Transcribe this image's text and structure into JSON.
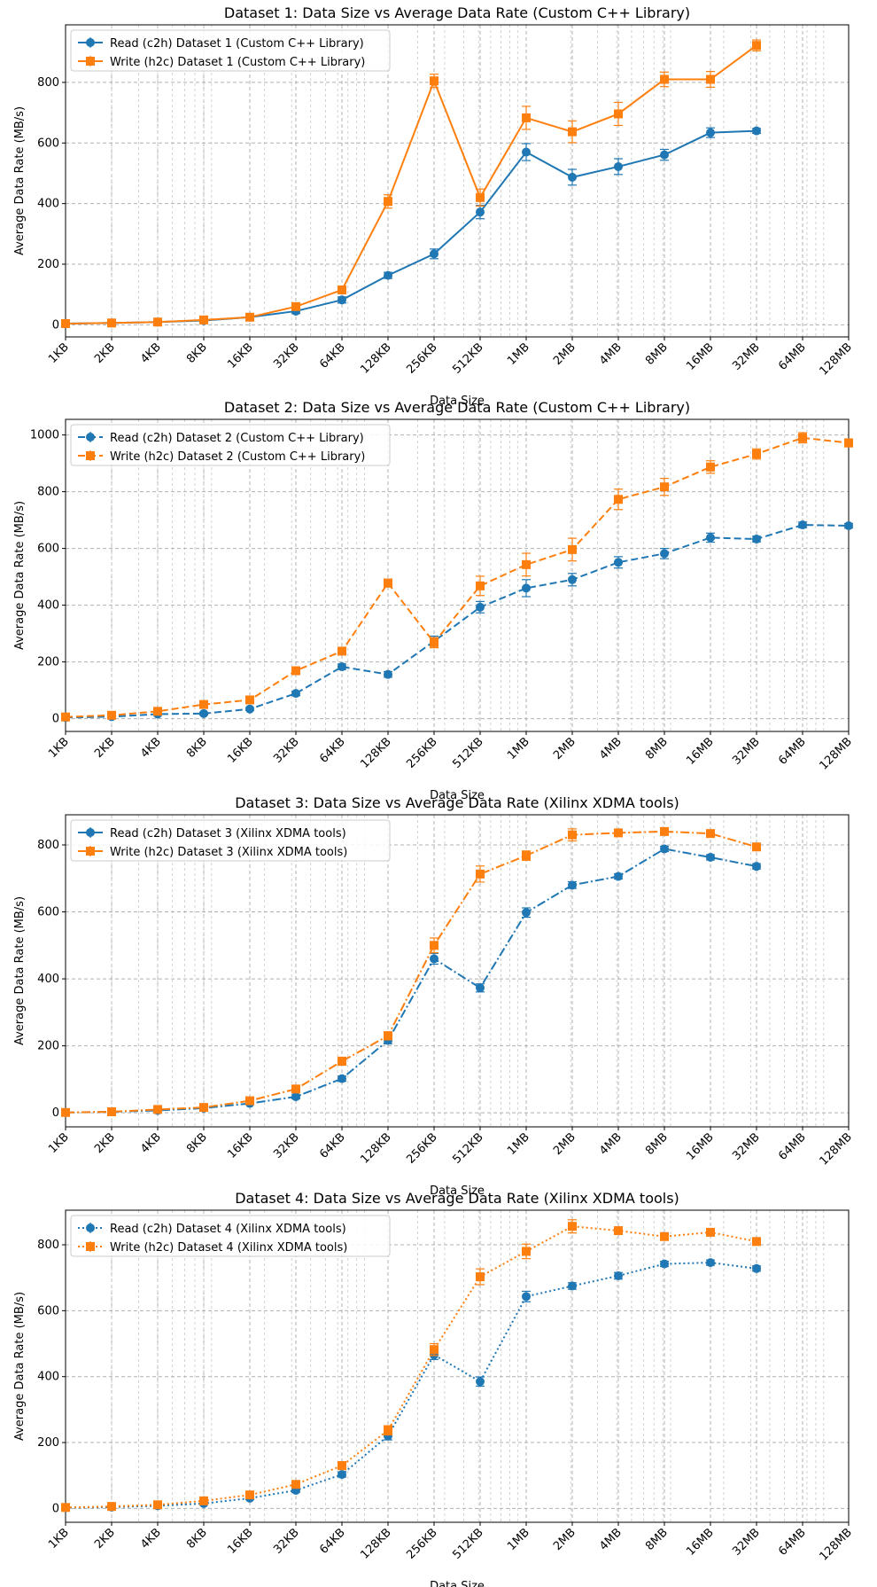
{
  "chart_data": [
    {
      "type": "line",
      "title": "Dataset 1: Data Size vs Average Data Rate (Custom C++ Library)",
      "xlabel": "Data Size",
      "ylabel": "Average Data Rate (MB/s)",
      "xscale": "log2",
      "x_tick_labels": [
        "1KB",
        "2KB",
        "4KB",
        "8KB",
        "16KB",
        "32KB",
        "64KB",
        "128KB",
        "256KB",
        "512KB",
        "1MB",
        "2MB",
        "4MB",
        "8MB",
        "16MB",
        "32MB",
        "64MB",
        "128MB"
      ],
      "yticks": [
        0,
        200,
        400,
        600,
        800
      ],
      "ylim": [
        -40,
        990
      ],
      "grid": true,
      "legend": "upper-left",
      "linestyle": "solid",
      "series": [
        {
          "name": "Read (c2h) Dataset 1 (Custom C++ Library)",
          "color": "#1f77b4",
          "marker": "circle",
          "x_index": [
            0,
            1,
            2,
            3,
            4,
            5,
            6,
            7,
            8,
            9,
            10,
            11,
            12,
            13,
            14,
            15
          ],
          "values": [
            4,
            6,
            9,
            14,
            25,
            45,
            82,
            163,
            234,
            372,
            570,
            487,
            522,
            561,
            634,
            640
          ],
          "errors": [
            3,
            3,
            3,
            4,
            5,
            8,
            10,
            10,
            16,
            22,
            28,
            26,
            26,
            18,
            16,
            8
          ]
        },
        {
          "name": "Write (h2c) Dataset 1 (Custom C++ Library)",
          "color": "#ff7f0e",
          "marker": "square",
          "x_index": [
            0,
            1,
            2,
            3,
            4,
            5,
            6,
            7,
            8,
            9,
            10,
            11,
            12,
            13,
            14,
            15
          ],
          "values": [
            4,
            6,
            9,
            16,
            25,
            60,
            115,
            407,
            805,
            420,
            683,
            637,
            696,
            810,
            810,
            922
          ],
          "errors": [
            3,
            3,
            3,
            4,
            5,
            8,
            10,
            22,
            22,
            28,
            38,
            36,
            38,
            24,
            26,
            18
          ]
        }
      ]
    },
    {
      "type": "line",
      "title": "Dataset 2: Data Size vs Average Data Rate (Custom C++ Library)",
      "xlabel": "Data Size",
      "ylabel": "Average Data Rate (MB/s)",
      "xscale": "log2",
      "x_tick_labels": [
        "1KB",
        "2KB",
        "4KB",
        "8KB",
        "16KB",
        "32KB",
        "64KB",
        "128KB",
        "256KB",
        "512KB",
        "1MB",
        "2MB",
        "4MB",
        "8MB",
        "16MB",
        "32MB",
        "64MB",
        "128MB"
      ],
      "yticks": [
        0,
        200,
        400,
        600,
        800,
        1000
      ],
      "ylim": [
        -45,
        1055
      ],
      "grid": true,
      "legend": "upper-left",
      "linestyle": "dashed",
      "series": [
        {
          "name": "Read (c2h) Dataset 2 (Custom C++ Library)",
          "color": "#1f77b4",
          "marker": "circle",
          "x_index": [
            0,
            1,
            2,
            3,
            4,
            5,
            6,
            7,
            8,
            9,
            10,
            11,
            12,
            13,
            14,
            15,
            16,
            17
          ],
          "values": [
            4,
            7,
            16,
            18,
            34,
            89,
            183,
            156,
            273,
            393,
            460,
            490,
            551,
            582,
            638,
            633,
            683,
            680
          ],
          "errors": [
            3,
            3,
            4,
            4,
            5,
            8,
            10,
            10,
            18,
            20,
            30,
            22,
            20,
            18,
            16,
            10,
            10,
            8
          ]
        },
        {
          "name": "Write (h2c) Dataset 2 (Custom C++ Library)",
          "color": "#ff7f0e",
          "marker": "square",
          "x_index": [
            0,
            1,
            2,
            3,
            4,
            5,
            6,
            7,
            8,
            9,
            10,
            11,
            12,
            13,
            14,
            15,
            16,
            17
          ],
          "values": [
            6,
            12,
            26,
            50,
            66,
            169,
            238,
            478,
            268,
            468,
            543,
            596,
            773,
            817,
            887,
            933,
            990,
            972
          ],
          "errors": [
            3,
            4,
            5,
            6,
            6,
            10,
            12,
            14,
            18,
            34,
            40,
            40,
            36,
            30,
            22,
            18,
            18,
            14
          ]
        }
      ]
    },
    {
      "type": "line",
      "title": "Dataset 3: Data Size vs Average Data Rate (Xilinx XDMA tools)",
      "xlabel": "Data Size",
      "ylabel": "Average Data Rate (MB/s)",
      "xscale": "log2",
      "x_tick_labels": [
        "1KB",
        "2KB",
        "4KB",
        "8KB",
        "16KB",
        "32KB",
        "64KB",
        "128KB",
        "256KB",
        "512KB",
        "1MB",
        "2MB",
        "4MB",
        "8MB",
        "16MB",
        "32MB",
        "64MB",
        "128MB"
      ],
      "yticks": [
        0,
        200,
        400,
        600,
        800
      ],
      "ylim": [
        -42,
        890
      ],
      "grid": true,
      "legend": "upper-left",
      "linestyle": "dashdot",
      "series": [
        {
          "name": "Read (c2h) Dataset 3 (Xilinx XDMA tools)",
          "color": "#1f77b4",
          "marker": "circle",
          "x_index": [
            0,
            1,
            2,
            3,
            4,
            5,
            6,
            7,
            8,
            9,
            10,
            11,
            12,
            13,
            14,
            15
          ],
          "values": [
            1,
            3,
            7,
            14,
            28,
            48,
            102,
            216,
            460,
            373,
            598,
            680,
            706,
            788,
            763,
            736
          ],
          "errors": [
            2,
            2,
            3,
            3,
            4,
            6,
            8,
            10,
            16,
            12,
            14,
            10,
            8,
            8,
            8,
            8
          ]
        },
        {
          "name": "Write (h2c) Dataset 3 (Xilinx XDMA tools)",
          "color": "#ff7f0e",
          "marker": "square",
          "x_index": [
            0,
            1,
            2,
            3,
            4,
            5,
            6,
            7,
            8,
            9,
            10,
            11,
            12,
            13,
            14,
            15
          ],
          "values": [
            1,
            3,
            10,
            16,
            36,
            71,
            154,
            230,
            500,
            713,
            768,
            830,
            836,
            840,
            834,
            794
          ],
          "errors": [
            2,
            2,
            3,
            3,
            4,
            6,
            12,
            12,
            22,
            24,
            14,
            18,
            10,
            8,
            10,
            10
          ]
        }
      ]
    },
    {
      "type": "line",
      "title": "Dataset 4: Data Size vs Average Data Rate (Xilinx XDMA tools)",
      "xlabel": "Data Size",
      "ylabel": "Average Data Rate (MB/s)",
      "xscale": "log2",
      "x_tick_labels": [
        "1KB",
        "2KB",
        "4KB",
        "8KB",
        "16KB",
        "32KB",
        "64KB",
        "128KB",
        "256KB",
        "512KB",
        "1MB",
        "2MB",
        "4MB",
        "8MB",
        "16MB",
        "32MB",
        "64MB",
        "128MB"
      ],
      "yticks": [
        0,
        200,
        400,
        600,
        800
      ],
      "ylim": [
        -42,
        905
      ],
      "grid": true,
      "legend": "upper-left",
      "linestyle": "dotted",
      "series": [
        {
          "name": "Read (c2h) Dataset 4 (Xilinx XDMA tools)",
          "color": "#1f77b4",
          "marker": "circle",
          "x_index": [
            0,
            1,
            2,
            3,
            4,
            5,
            6,
            7,
            8,
            9,
            10,
            11,
            12,
            13,
            14,
            15
          ],
          "values": [
            2,
            4,
            8,
            15,
            31,
            55,
            103,
            220,
            466,
            385,
            643,
            675,
            706,
            742,
            746,
            728
          ],
          "errors": [
            2,
            2,
            3,
            3,
            4,
            6,
            8,
            12,
            14,
            14,
            16,
            10,
            10,
            8,
            8,
            8
          ]
        },
        {
          "name": "Write (h2c) Dataset 4 (Xilinx XDMA tools)",
          "color": "#ff7f0e",
          "marker": "square",
          "x_index": [
            0,
            1,
            2,
            3,
            4,
            5,
            6,
            7,
            8,
            9,
            10,
            11,
            12,
            13,
            14,
            15
          ],
          "values": [
            3,
            6,
            11,
            23,
            41,
            73,
            130,
            237,
            482,
            703,
            780,
            856,
            843,
            825,
            838,
            810
          ],
          "errors": [
            2,
            2,
            3,
            4,
            5,
            8,
            12,
            14,
            18,
            24,
            22,
            20,
            10,
            10,
            10,
            10
          ]
        }
      ]
    }
  ]
}
